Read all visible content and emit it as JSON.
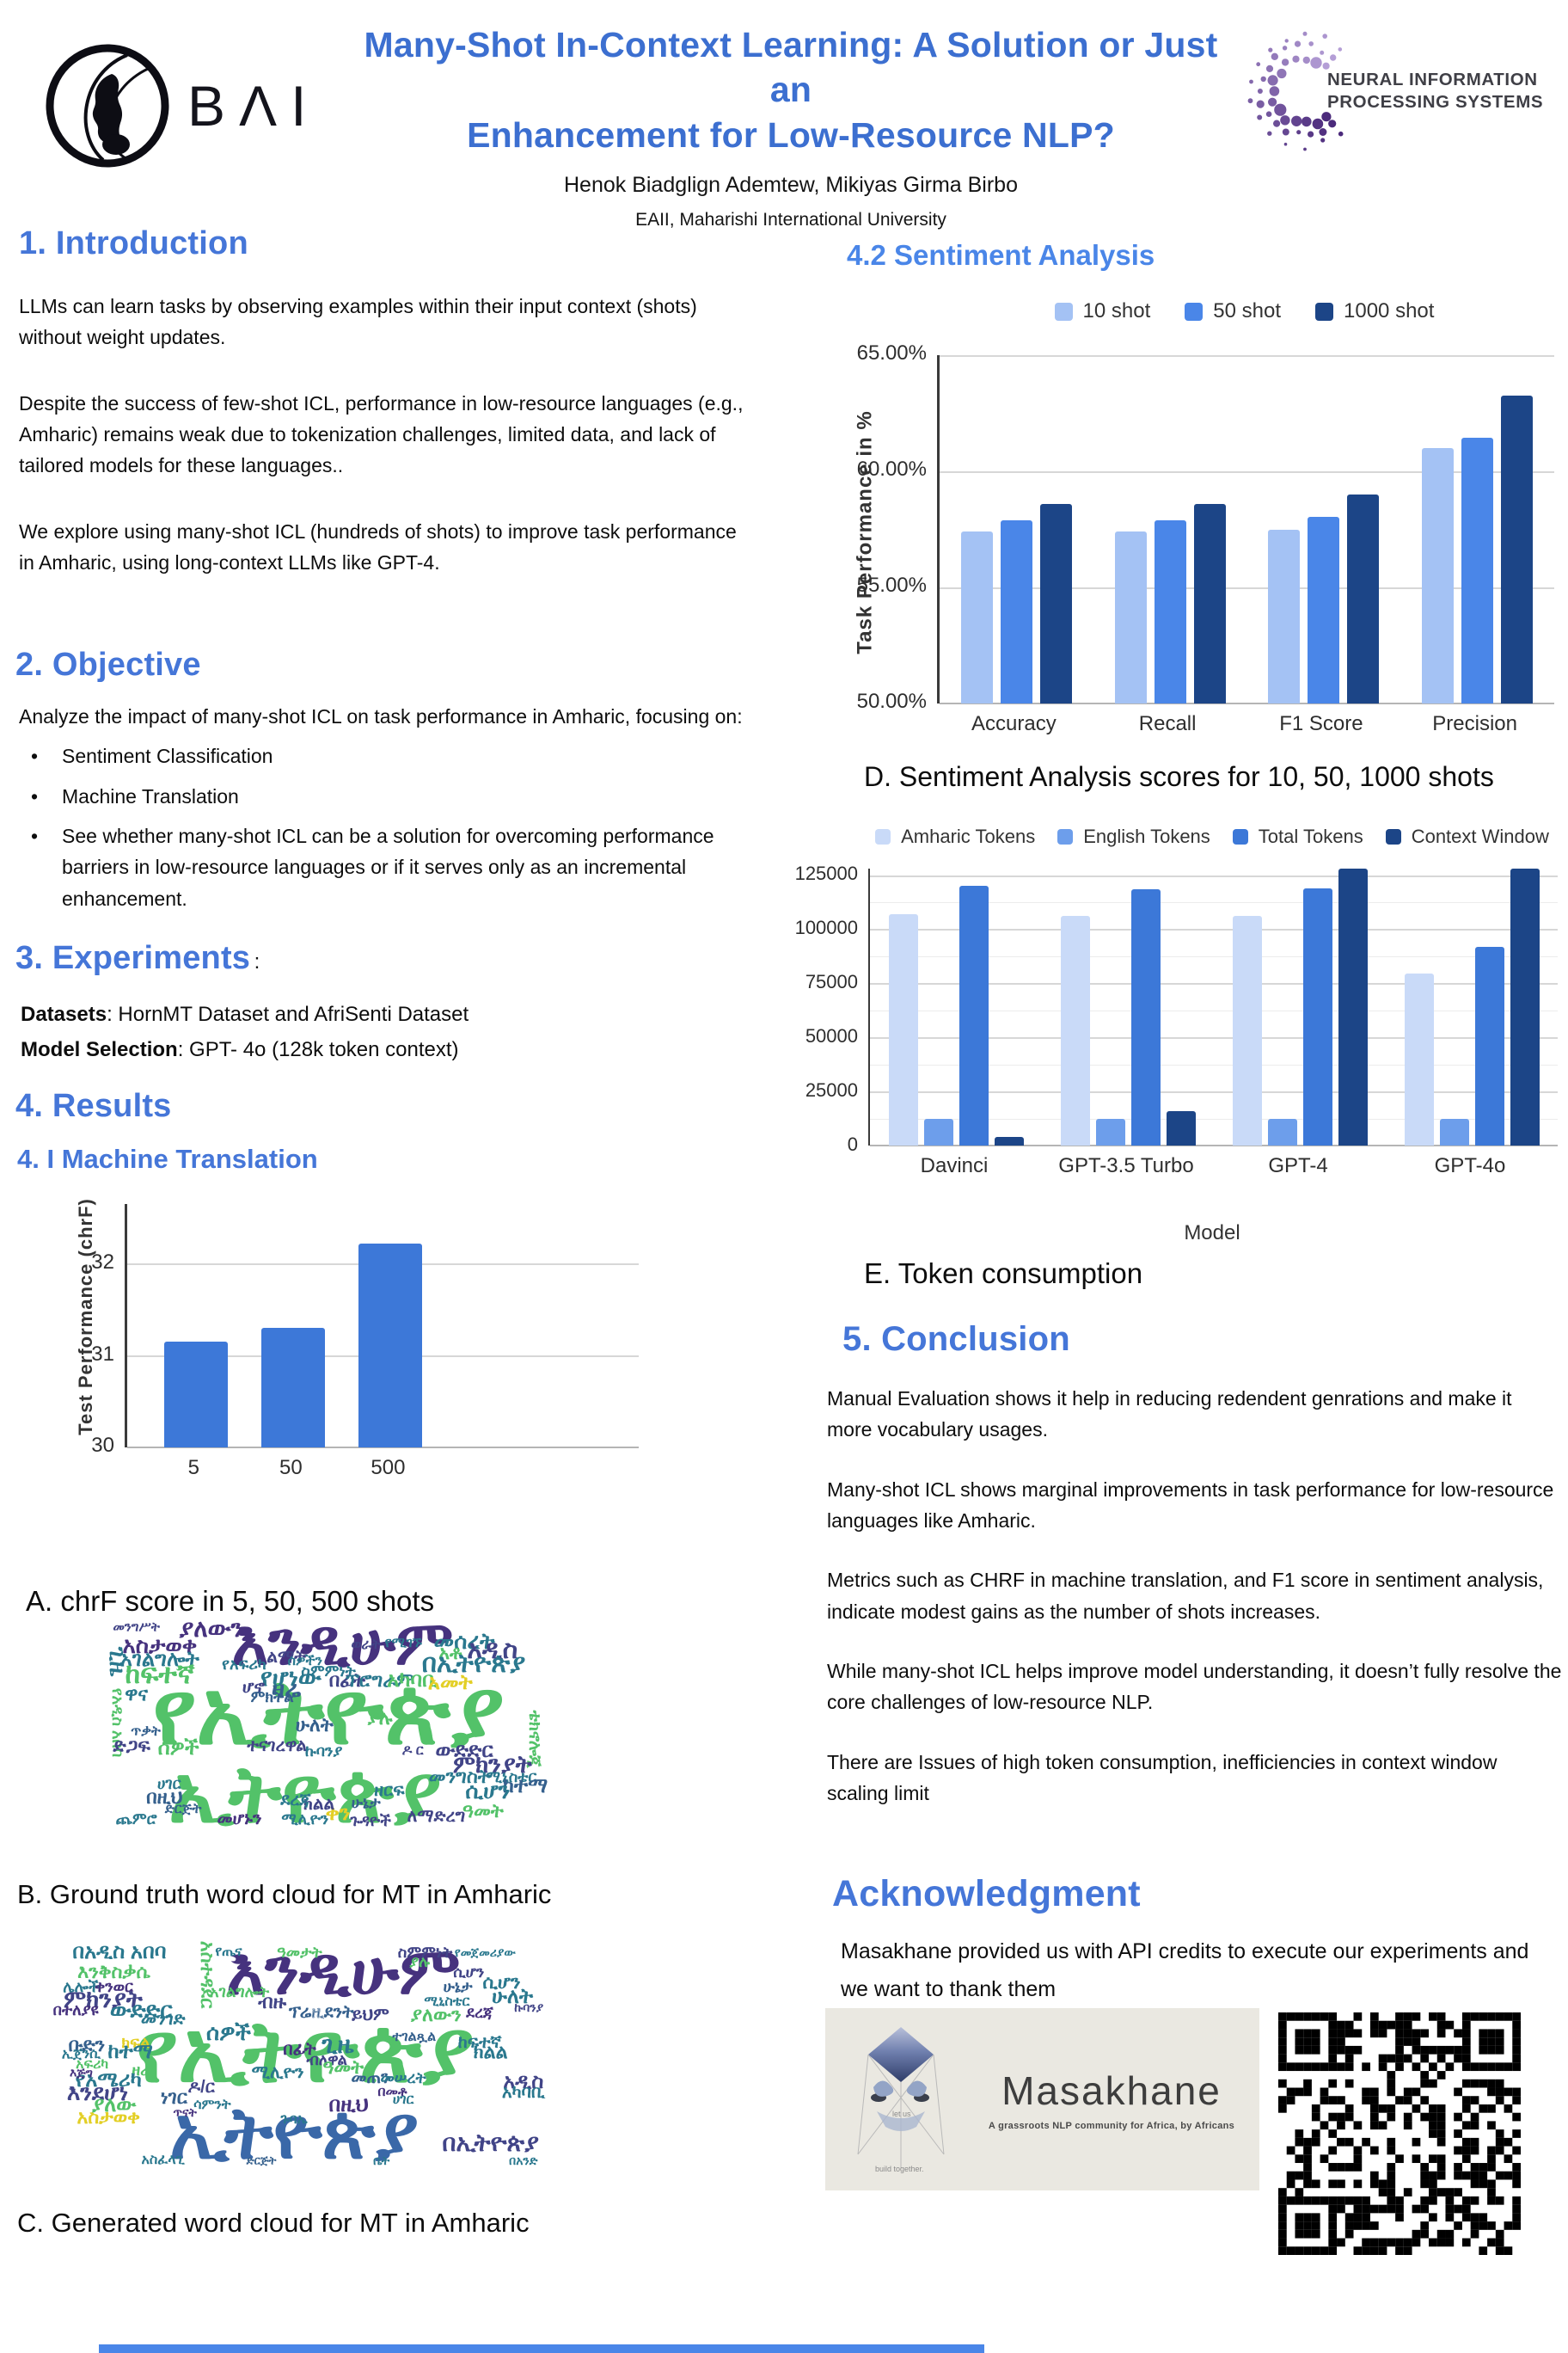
{
  "header": {
    "logo_text": "BΛI",
    "title_line1": "Many-Shot In-Context Learning: A Solution or Just an",
    "title_line2": "Enhancement for Low-Resource NLP?",
    "authors": "Henok Biadglign Ademtew, Mikiyas Girma Birbo",
    "affiliation": "EAII, Maharishi International University",
    "neurips_line1": "NEURAL INFORMATION",
    "neurips_line2": "PROCESSING SYSTEMS"
  },
  "colors": {
    "title_blue": "#3c6fd0",
    "heading_blue": "#4576d8",
    "accent_bar": "#4a86e8"
  },
  "sections": {
    "introduction": {
      "heading": "1. Introduction",
      "paragraphs": [
        "LLMs can learn tasks by observing examples within their input context (shots) without weight updates.",
        "Despite the success of few-shot ICL, performance in low-resource languages (e.g., Amharic) remains weak due to tokenization challenges, limited data, and lack of tailored models for these languages..",
        "We explore using many-shot ICL (hundreds of shots) to improve task performance in Amharic, using long-context LLMs like GPT-4."
      ]
    },
    "objective": {
      "heading": "2. Objective",
      "lead": "Analyze the impact of many-shot ICL on task performance in Amharic, focusing on:",
      "bullets": [
        "Sentiment Classification",
        "Machine Translation",
        "See whether many-shot ICL can be a solution for overcoming performance barriers in low-resource languages or if it serves only as an incremental enhancement."
      ]
    },
    "experiments": {
      "heading": "3. Experiments",
      "colon": ":",
      "datasets_label": "Datasets",
      "datasets_value": ": HornMT Dataset and AfriSenti Dataset",
      "model_label": "Model Selection",
      "model_value": ": GPT- 4o (128k token context)"
    },
    "results": {
      "heading": "4. Results",
      "subheading_mt": "4. I Machine Translation",
      "subheading_sa": "4.2 Sentiment Analysis",
      "caption_a": "A.  chrF score in 5, 50, 500 shots",
      "caption_b": "B. Ground truth word cloud for MT in Amharic",
      "caption_c": "C. Generated word cloud for MT in Amharic",
      "caption_d": "D. Sentiment Analysis scores for 10, 50, 1000 shots",
      "caption_e": "E. Token consumption"
    },
    "conclusion": {
      "heading": "5. Conclusion",
      "paragraphs": [
        "Manual Evaluation shows it help in reducing redendent genrations and make it more vocabulary usages.",
        "Many-shot ICL shows marginal improvements in task performance for low-resource languages like Amharic.",
        "Metrics such as CHRF in machine translation, and F1 score in sentiment analysis, indicate modest gains as the number of shots increases.",
        "While many-shot ICL helps improve model understanding, it doesn’t fully resolve the core challenges of low-resource NLP.",
        "There are Issues of high token consumption, inefficiencies in context window scaling limit"
      ]
    },
    "acknowledgment": {
      "heading": "Acknowledgment",
      "text": "Masakhane provided us with API credits to execute our experiments and we want to thank them"
    }
  },
  "masakhane": {
    "name": "Masakhane",
    "subtitle": "A grassroots NLP community for Africa, by Africans",
    "tag_top": "let us",
    "tag_bottom": "build together."
  },
  "chart_data": [
    {
      "id": "mt_chrf",
      "type": "bar",
      "title": "",
      "categories": [
        "5",
        "50",
        "500"
      ],
      "values": [
        31.15,
        31.3,
        32.22
      ],
      "xlabel": "",
      "ylabel": "Test Performance (chrF)",
      "ylim": [
        30,
        32.65
      ],
      "yticks": [
        {
          "v": 30,
          "label": "30"
        },
        {
          "v": 31,
          "label": "31"
        },
        {
          "v": 32,
          "label": "32"
        }
      ],
      "bar_color": "#3d78d8",
      "grid": true,
      "legend_position": "none"
    },
    {
      "id": "sentiment",
      "type": "bar",
      "title": "",
      "categories": [
        "Accuracy",
        "Recall",
        "F1 Score",
        "Precision"
      ],
      "series": [
        {
          "name": "10 shot",
          "color": "#a4c2f4",
          "values": [
            57.4,
            57.4,
            57.5,
            61.0
          ]
        },
        {
          "name": "50 shot",
          "color": "#4a86e8",
          "values": [
            57.9,
            57.9,
            58.05,
            61.45
          ]
        },
        {
          "name": "1000 shot",
          "color": "#1c4587",
          "values": [
            58.6,
            58.6,
            59.0,
            63.25
          ]
        }
      ],
      "xlabel": "",
      "ylabel": "Task Performance in %",
      "ylim": [
        50,
        65
      ],
      "yticks": [
        {
          "v": 50,
          "label": "50.00%"
        },
        {
          "v": 55,
          "label": "55.00%"
        },
        {
          "v": 60,
          "label": "60.00%"
        },
        {
          "v": 65,
          "label": "65.00%"
        }
      ],
      "grid": true,
      "legend_position": "top"
    },
    {
      "id": "tokens",
      "type": "bar",
      "title": "",
      "categories": [
        "Davinci",
        "GPT-3.5 Turbo",
        "GPT-4",
        "GPT-4o"
      ],
      "series": [
        {
          "name": "Amharic Tokens",
          "color": "#c9daf8",
          "values": [
            107000,
            106000,
            106000,
            79500
          ]
        },
        {
          "name": "English Tokens",
          "color": "#6d9eeb",
          "values": [
            12500,
            12500,
            12500,
            12500
          ]
        },
        {
          "name": "Total Tokens",
          "color": "#3c78d8",
          "values": [
            120000,
            118500,
            118800,
            92000
          ]
        },
        {
          "name": "Context Window",
          "color": "#1c4587",
          "values": [
            4000,
            16000,
            128000,
            128000
          ]
        }
      ],
      "xlabel": "Model",
      "ylabel": "",
      "ylim": [
        0,
        128000
      ],
      "yticks": [
        {
          "v": 0,
          "label": "0"
        },
        {
          "v": 25000,
          "label": "25000"
        },
        {
          "v": 50000,
          "label": "50000"
        },
        {
          "v": 75000,
          "label": "75000"
        },
        {
          "v": 100000,
          "label": "100000"
        },
        {
          "v": 125000,
          "label": "125000"
        }
      ],
      "minor_step": 12500,
      "grid": true,
      "legend_position": "top"
    }
  ],
  "wordclouds": {
    "palette": {
      "p": "#46327e",
      "n": "#414487",
      "b": "#35608d",
      "s": "#3a68a8",
      "t": "#2a788e",
      "g": "#53c269",
      "y": "#e3cf26"
    },
    "b": [
      [
        "እንዲሁም",
        52,
        12,
        72,
        "p",
        0
      ],
      [
        "የኢትዮጵያ",
        49,
        42,
        104,
        "g",
        0
      ],
      [
        "ኢትዮጵያ",
        44,
        77,
        92,
        "g",
        0
      ],
      [
        "ያለውን",
        24,
        6,
        28,
        "p",
        0
      ],
      [
        "አስታወቀ",
        13,
        13,
        26,
        "p",
        0
      ],
      [
        "አገልግሎት",
        13,
        19,
        24,
        "t",
        0
      ],
      [
        "ከፍተኛ",
        13,
        25,
        32,
        "g",
        0
      ],
      [
        "ጊዜ",
        4,
        20,
        26,
        "t",
        1
      ],
      [
        "መንግሥት",
        8,
        5,
        15,
        "n",
        0
      ],
      [
        "የአፍሪካ",
        31,
        21,
        18,
        "t",
        0
      ],
      [
        "የሆነው",
        41,
        27,
        28,
        "t",
        0
      ],
      [
        "ዛሬ",
        40,
        32,
        28,
        "b",
        0
      ],
      [
        "ሆኖ",
        33,
        31,
        20,
        "n",
        0
      ],
      [
        "ልማት",
        40,
        18,
        20,
        "n",
        0
      ],
      [
        "ሰዎችን",
        44,
        20,
        16,
        "t",
        0
      ],
      [
        "ስምምነት",
        49,
        24,
        18,
        "t",
        0
      ],
      [
        "በፊት",
        53,
        28,
        22,
        "n",
        0
      ],
      [
        "ፕሮግራም",
        60,
        28,
        22,
        "t",
        0
      ],
      [
        "አካባቢ",
        67,
        28,
        24,
        "g",
        0
      ],
      [
        "ወራት",
        57,
        13,
        16,
        "n",
        0
      ],
      [
        "የሚገኙ",
        65,
        12,
        16,
        "t",
        0
      ],
      [
        "መሰረት",
        78,
        11,
        26,
        "t",
        0
      ],
      [
        "አቶ",
        75,
        16,
        22,
        "g",
        0
      ],
      [
        "አዲስ",
        84,
        15,
        30,
        "n",
        0
      ],
      [
        "በኢትዮጵያ",
        80,
        21,
        30,
        "t",
        0
      ],
      [
        "አመት",
        75,
        29,
        24,
        "y",
        0
      ],
      [
        "ምክትል",
        37,
        35,
        18,
        "b",
        0
      ],
      [
        "ዋና",
        8,
        34,
        22,
        "t",
        0
      ],
      [
        "የአዲስ አበባ",
        4,
        46,
        18,
        "g",
        1
      ],
      [
        "ድጋፍ",
        7,
        56,
        22,
        "n",
        0
      ],
      [
        "ሰዎች",
        17,
        57,
        24,
        "g",
        0
      ],
      [
        "ጥቃት",
        10,
        50,
        16,
        "b",
        0
      ],
      [
        "ተናገረዋል",
        38,
        56,
        20,
        "n",
        0
      ],
      [
        "ኩባንያ",
        48,
        58,
        18,
        "t",
        0
      ],
      [
        "ያሉ",
        60,
        44,
        22,
        "g",
        0
      ],
      [
        "ሁለት",
        46,
        47,
        22,
        "b",
        0
      ],
      [
        "ዶ ር",
        67,
        58,
        16,
        "n",
        0
      ],
      [
        "ውድድር",
        78,
        58,
        24,
        "n",
        0
      ],
      [
        "ቴክኖሎጂ",
        93,
        53,
        20,
        "g",
        1
      ],
      [
        "ምክንያት",
        84,
        64,
        28,
        "n",
        0
      ],
      [
        "መንግስት",
        77,
        69,
        22,
        "t",
        0
      ],
      [
        "ሚኒስቴር",
        88,
        69,
        18,
        "t",
        0
      ],
      [
        "ከተማ",
        91,
        73,
        24,
        "b",
        0
      ],
      [
        "ሲሆን",
        83,
        75,
        26,
        "t",
        0
      ],
      [
        "በዚህ",
        14,
        78,
        22,
        "b",
        0
      ],
      [
        "ድርጅት",
        18,
        83,
        16,
        "b",
        0
      ],
      [
        "መሆኑን",
        30,
        87,
        20,
        "p",
        0
      ],
      [
        "ሚሊዮን",
        44,
        87,
        18,
        "t",
        0
      ],
      [
        "ቀን",
        51,
        85,
        24,
        "y",
        0
      ],
      [
        "ጉዳዮች",
        58,
        88,
        18,
        "n",
        0
      ],
      [
        "ለማድረግ",
        72,
        86,
        20,
        "n",
        0
      ],
      [
        "ዓመት",
        82,
        84,
        22,
        "g",
        0
      ],
      [
        "ክልል",
        47,
        81,
        20,
        "n",
        0
      ],
      [
        "ደረጃ",
        42,
        79,
        20,
        "t",
        0
      ],
      [
        "ዘርፍ",
        62,
        75,
        20,
        "t",
        0
      ],
      [
        "ጨምሮ",
        8,
        87,
        18,
        "t",
        0
      ],
      [
        "ሀገር",
        15,
        72,
        18,
        "t",
        0
      ],
      [
        "ሁኔታ",
        57,
        80,
        18,
        "b",
        0
      ]
    ],
    "c": [
      [
        "እንዲሁም",
        55,
        13,
        76,
        "p",
        0
      ],
      [
        "የኢትዮጵያ",
        48,
        45,
        100,
        "g",
        0
      ],
      [
        "ኢትዮጵያ",
        46,
        77,
        84,
        "s",
        0
      ],
      [
        "በአዲስ አበባ",
        14,
        5,
        24,
        "t",
        0
      ],
      [
        "እንቅስቃሴ",
        13,
        13,
        22,
        "g",
        0
      ],
      [
        "ሌሎች",
        7,
        19,
        18,
        "t",
        0
      ],
      [
        "ቀንወር",
        13,
        19,
        18,
        "p",
        0
      ],
      [
        "ምክንያት",
        11,
        24,
        28,
        "n",
        0
      ],
      [
        "በተለያዩ",
        6,
        28,
        18,
        "p",
        0
      ],
      [
        "ውድድር",
        18,
        28,
        26,
        "t",
        0
      ],
      [
        "መንገድ",
        22,
        32,
        20,
        "t",
        0
      ],
      [
        "አስተዳደር",
        30,
        14,
        22,
        "g",
        1
      ],
      [
        "አገልግሎት",
        36,
        21,
        18,
        "g",
        0
      ],
      [
        "ብዙ",
        42,
        25,
        22,
        "n",
        0
      ],
      [
        "ፕሬዚደንት",
        51,
        29,
        20,
        "b",
        0
      ],
      [
        "ይህም",
        60,
        30,
        20,
        "n",
        0
      ],
      [
        "ያለውን",
        72,
        30,
        22,
        "g",
        0
      ],
      [
        "ደረጃ",
        80,
        29,
        18,
        "p",
        0
      ],
      [
        "ሲሆን",
        84,
        17,
        22,
        "t",
        0
      ],
      [
        "ሁኔታ",
        76,
        19,
        18,
        "b",
        0
      ],
      [
        "ሁለት",
        86,
        23,
        24,
        "t",
        0
      ],
      [
        "ኩባንያ",
        89,
        27,
        14,
        "n",
        0
      ],
      [
        "ሚኒስቴር",
        74,
        25,
        16,
        "t",
        0
      ],
      [
        "የጤና",
        34,
        5,
        16,
        "t",
        0
      ],
      [
        "ዓመታት",
        47,
        5,
        18,
        "g",
        0
      ],
      [
        "ስምምነት",
        70,
        5,
        18,
        "n",
        0
      ],
      [
        "የመጀመሪያው",
        81,
        5,
        14,
        "t",
        0
      ],
      [
        "ያሉ",
        69,
        9,
        18,
        "g",
        0
      ],
      [
        "ሲሆን",
        78,
        13,
        18,
        "n",
        0
      ],
      [
        "ሰዎች",
        34,
        37,
        26,
        "t",
        0
      ],
      [
        "ቡድን",
        8,
        42,
        22,
        "b",
        0
      ],
      [
        "ኢጀንሲ",
        7,
        46,
        16,
        "t",
        0
      ],
      [
        "አፍሪካ",
        9,
        50,
        16,
        "g",
        0
      ],
      [
        "ክፍል",
        17,
        41,
        18,
        "y",
        0
      ],
      [
        "ከተማ",
        16,
        45,
        24,
        "t",
        0
      ],
      [
        "ጊዜ",
        54,
        42,
        28,
        "t",
        0
      ],
      [
        "በፊት",
        47,
        44,
        20,
        "p",
        0
      ],
      [
        "ብለዋል",
        52,
        48,
        18,
        "n",
        0
      ],
      [
        "ዓመት",
        55,
        51,
        22,
        "g",
        0
      ],
      [
        "ሚሊዮን",
        43,
        53,
        20,
        "t",
        0
      ],
      [
        "ተገልጿል",
        68,
        39,
        16,
        "b",
        0
      ],
      [
        "ከፍተኛ",
        80,
        41,
        20,
        "t",
        0
      ],
      [
        "ክልል",
        82,
        45,
        22,
        "t",
        0
      ],
      [
        "የአሜሪካ",
        12,
        56,
        24,
        "t",
        0
      ],
      [
        "ዛሬ",
        18,
        52,
        18,
        "g",
        0
      ],
      [
        "እንደሆነ",
        10,
        61,
        26,
        "n",
        0
      ],
      [
        "ያለው",
        13,
        66,
        24,
        "g",
        0
      ],
      [
        "አስታወቀ",
        12,
        71,
        22,
        "y",
        0
      ],
      [
        "ነገር",
        24,
        63,
        22,
        "b",
        0
      ],
      [
        "ዶ/ር",
        29,
        59,
        20,
        "n",
        0
      ],
      [
        "ሳምንት",
        31,
        66,
        16,
        "t",
        0
      ],
      [
        "መጠን",
        60,
        55,
        20,
        "b",
        0
      ],
      [
        "መሠረት",
        66,
        55,
        18,
        "t",
        0
      ],
      [
        "በመቶ",
        64,
        61,
        16,
        "p",
        0
      ],
      [
        "በዚህ",
        56,
        66,
        24,
        "p",
        0
      ],
      [
        "ሀገር",
        66,
        64,
        16,
        "t",
        0
      ],
      [
        "አዲስ",
        88,
        57,
        24,
        "n",
        0
      ],
      [
        "አካባቢ",
        88,
        61,
        20,
        "t",
        0
      ],
      [
        "በኢትዮጵያ",
        82,
        81,
        28,
        "n",
        0
      ],
      [
        "አስፈላጊ",
        22,
        88,
        16,
        "t",
        0
      ],
      [
        "ድርጅት",
        40,
        88,
        13,
        "b",
        0
      ],
      [
        "ጉባኤ",
        46,
        72,
        16,
        "t",
        0
      ],
      [
        "በአንድ",
        88,
        88,
        14,
        "t",
        0
      ],
      [
        "ቤት",
        62,
        88,
        14,
        "t",
        0
      ],
      [
        "ጥናት",
        26,
        69,
        14,
        "p",
        0
      ],
      [
        "እጅግ",
        7,
        53,
        14,
        "p",
        0
      ]
    ]
  }
}
